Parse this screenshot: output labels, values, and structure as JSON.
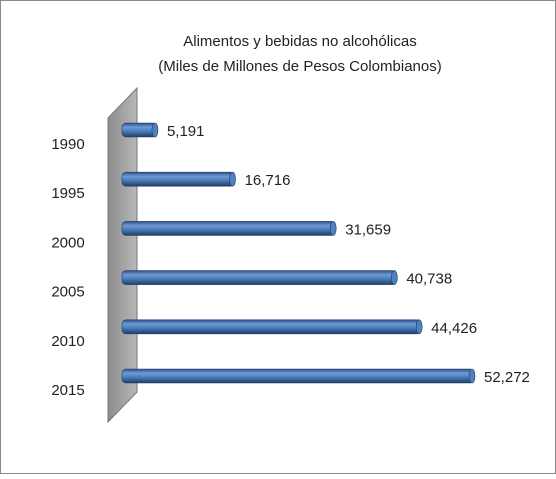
{
  "chart_data": {
    "type": "bar",
    "orientation": "horizontal",
    "title": "Alimentos y bebidas no alcohólicas",
    "subtitle": "(Miles de Millones de Pesos Colombianos)",
    "categories": [
      "1990",
      "1995",
      "2000",
      "2005",
      "2010",
      "2015"
    ],
    "values": [
      5191,
      16716,
      31659,
      40738,
      44426,
      52272
    ],
    "value_labels": [
      "5,191",
      "16,716",
      "31,659",
      "40,738",
      "44,426",
      "52,272"
    ],
    "color": "#4f81bd"
  }
}
